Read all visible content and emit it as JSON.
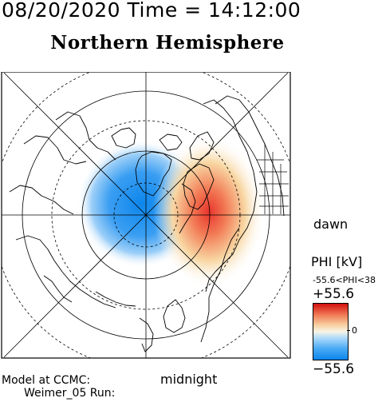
{
  "header": "08/20/2020 Time = 14:12:00",
  "title": "Northern Hemisphere",
  "labels": {
    "dawn": "dawn",
    "midnight": "midnight",
    "model": "Model at CCMC:",
    "run": "Weimer_05 Run:"
  },
  "colorbar": {
    "quantity": "PHI [kV]",
    "range_text": "-55.6<PHI<38",
    "max_label": "+55.6",
    "zero_label": "0",
    "min_label": "−55.6",
    "colors": [
      "#d21010",
      "#f07a55",
      "#f7d0a0",
      "#f8f4e6",
      "#aad8fb",
      "#4aaaf4",
      "#0c86ec"
    ]
  },
  "map": {
    "projection": "polar (north pole at center)",
    "potential_colors": {
      "positive": "#e8342c",
      "negative": "#1f8ef1"
    }
  }
}
